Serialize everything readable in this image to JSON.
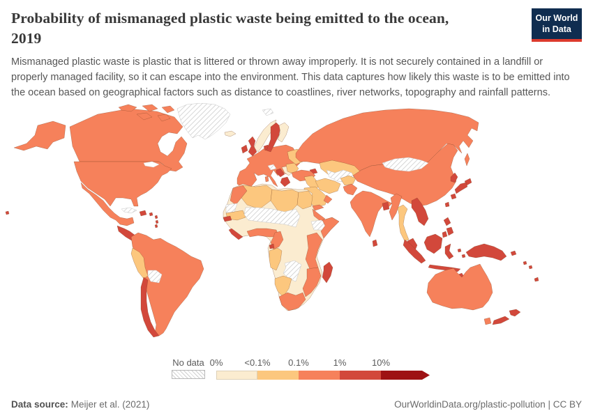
{
  "header": {
    "title": "Probability of mismanaged plastic waste being emitted to the ocean, 2019",
    "subtitle": "Mismanaged plastic waste is plastic that is littered or thrown away improperly. It is not securely contained in a landfill or properly managed facility, so it can escape into the environment. This data captures how likely this waste is to be emitted into the ocean based on geographical factors such as distance to coastlines, river networks, topography and rainfall patterns."
  },
  "logo": {
    "line1": "Our World",
    "line2": "in Data",
    "bg_color": "#102d50",
    "stripe_color": "#dc3a2d"
  },
  "legend": {
    "no_data_label": "No data",
    "tick_labels": [
      "0%",
      "<0.1%",
      "0.1%",
      "1%",
      "10%"
    ],
    "bin_colors": [
      "#fbecd0",
      "#fcc77e",
      "#f6815b",
      "#d2483b",
      "#9e1214"
    ]
  },
  "footer": {
    "source_label": "Data source:",
    "source_value": "Meijer et al. (2021)",
    "right_text": "OurWorldinData.org/plastic-pollution | CC BY"
  },
  "chart_data": {
    "type": "choropleth-map",
    "title": "Probability of mismanaged plastic waste being emitted to the ocean",
    "year": "2019",
    "unit": "%",
    "legend_position": "bottom",
    "bins": [
      {
        "key": "lt01",
        "range": "0% to <0.1%",
        "color": "#fbecd0"
      },
      {
        "key": "b01",
        "range": "<0.1% to 0.1%",
        "color": "#fcc77e"
      },
      {
        "key": "b1",
        "range": "0.1% to 1%",
        "color": "#f6815b"
      },
      {
        "key": "b10",
        "range": "1% to 10%",
        "color": "#d2483b"
      },
      {
        "key": "gt10",
        "range": ">10%",
        "color": "#9e1214"
      },
      {
        "key": "nodata",
        "range": "No data",
        "color": "hatched"
      }
    ],
    "bin_colors_by_key": {
      "lt01": "#fbecd0",
      "b01": "#fcc77e",
      "b1": "#f6815b",
      "b10": "#d2483b",
      "gt10": "#9e1214"
    },
    "values_by_region": {
      "canada": "b1",
      "alaska": "b1",
      "arctic_island_1": "b1",
      "arctic_island_2": "b1",
      "arctic_island_3": "b1",
      "arctic_island_4": "b1",
      "arctic_island_5": "b1",
      "greenland": "nodata",
      "iceland": "lt01",
      "usa": "b1",
      "mexico": "b1",
      "central_america": "b10",
      "cuba": "nodata",
      "hispaniola": "b10",
      "puerto_rico": "b10",
      "antilles_1": "b10",
      "antilles_2": "b10",
      "antilles_3": "b10",
      "hawaii": "b10",
      "south_america": "b1",
      "peru": "b01",
      "bolivia": "nodata",
      "chile": "b10",
      "europe_mainland": "b1",
      "sicily": "b1",
      "corsica_sardinia": "b1",
      "croatia": "b10",
      "balkans_inner": "lt01",
      "romania_bulgaria": "b01",
      "greece": "b10",
      "alps": "nodata",
      "denmark": "b10",
      "ukraine": "b01",
      "norway": "lt01",
      "sweden": "b10",
      "finland": "lt01",
      "uk": "b10",
      "ireland": "b10",
      "svalbard": "nodata",
      "russia": "b1",
      "sakhalin": "b1",
      "kazakhstan": "b01",
      "central_asia": "nodata",
      "caucasus": "b10",
      "turkey": "b1",
      "iraq_syria": "b01",
      "iran": "b01",
      "arabia": "b01",
      "oman": "b1",
      "yemen": "b1",
      "afghanistan": "b01",
      "pakistan": "b1",
      "india": "b1",
      "sri_lanka": "b10",
      "bangladesh": "b10",
      "china": "b1",
      "mongolia": "nodata",
      "korea": "b10",
      "japan_hokkaido": "b10",
      "japan_honshu": "b10",
      "japan_kyushu": "b10",
      "taiwan": "b10",
      "myanmar": "b1",
      "thailand": "b01",
      "malaysia": "b10",
      "vietnam_cambodia": "b10",
      "philippines_1": "b10",
      "philippines_2": "b10",
      "philippines_3": "b10",
      "sumatra": "b10",
      "borneo": "b10",
      "java": "b10",
      "sulawesi": "b10",
      "moluccas_1": "b10",
      "moluccas_2": "b10",
      "timor": "b10",
      "new_guinea": "b10",
      "new_britain": "b10",
      "solomon_1": "b10",
      "solomon_2": "b10",
      "fiji": "b10",
      "australia": "b1",
      "tasmania": "b1",
      "nz_north": "b10",
      "nz_south": "b10",
      "africa_interior": "lt01",
      "morocco": "b1",
      "algeria": "b01",
      "libya": "b01",
      "egypt": "b01",
      "western_sahara": "nodata",
      "mauritania": "b01",
      "sahara_sahel": "nodata",
      "senegal": "b10",
      "sierra_leone_liberia": "b10",
      "gulf_of_guinea_coast": "b1",
      "cameroon": "b1",
      "equatorial_guinea": "b10",
      "eritrea_djibouti": "b1",
      "ethiopia": "nodata",
      "somalia": "b1",
      "kenya_tanzania": "b1",
      "mozambique": "b1",
      "angola": "b01",
      "zambia_zimbabwe": "nodata",
      "namibia_botswana": "b01",
      "south_africa": "b1",
      "madagascar": "b10"
    }
  }
}
